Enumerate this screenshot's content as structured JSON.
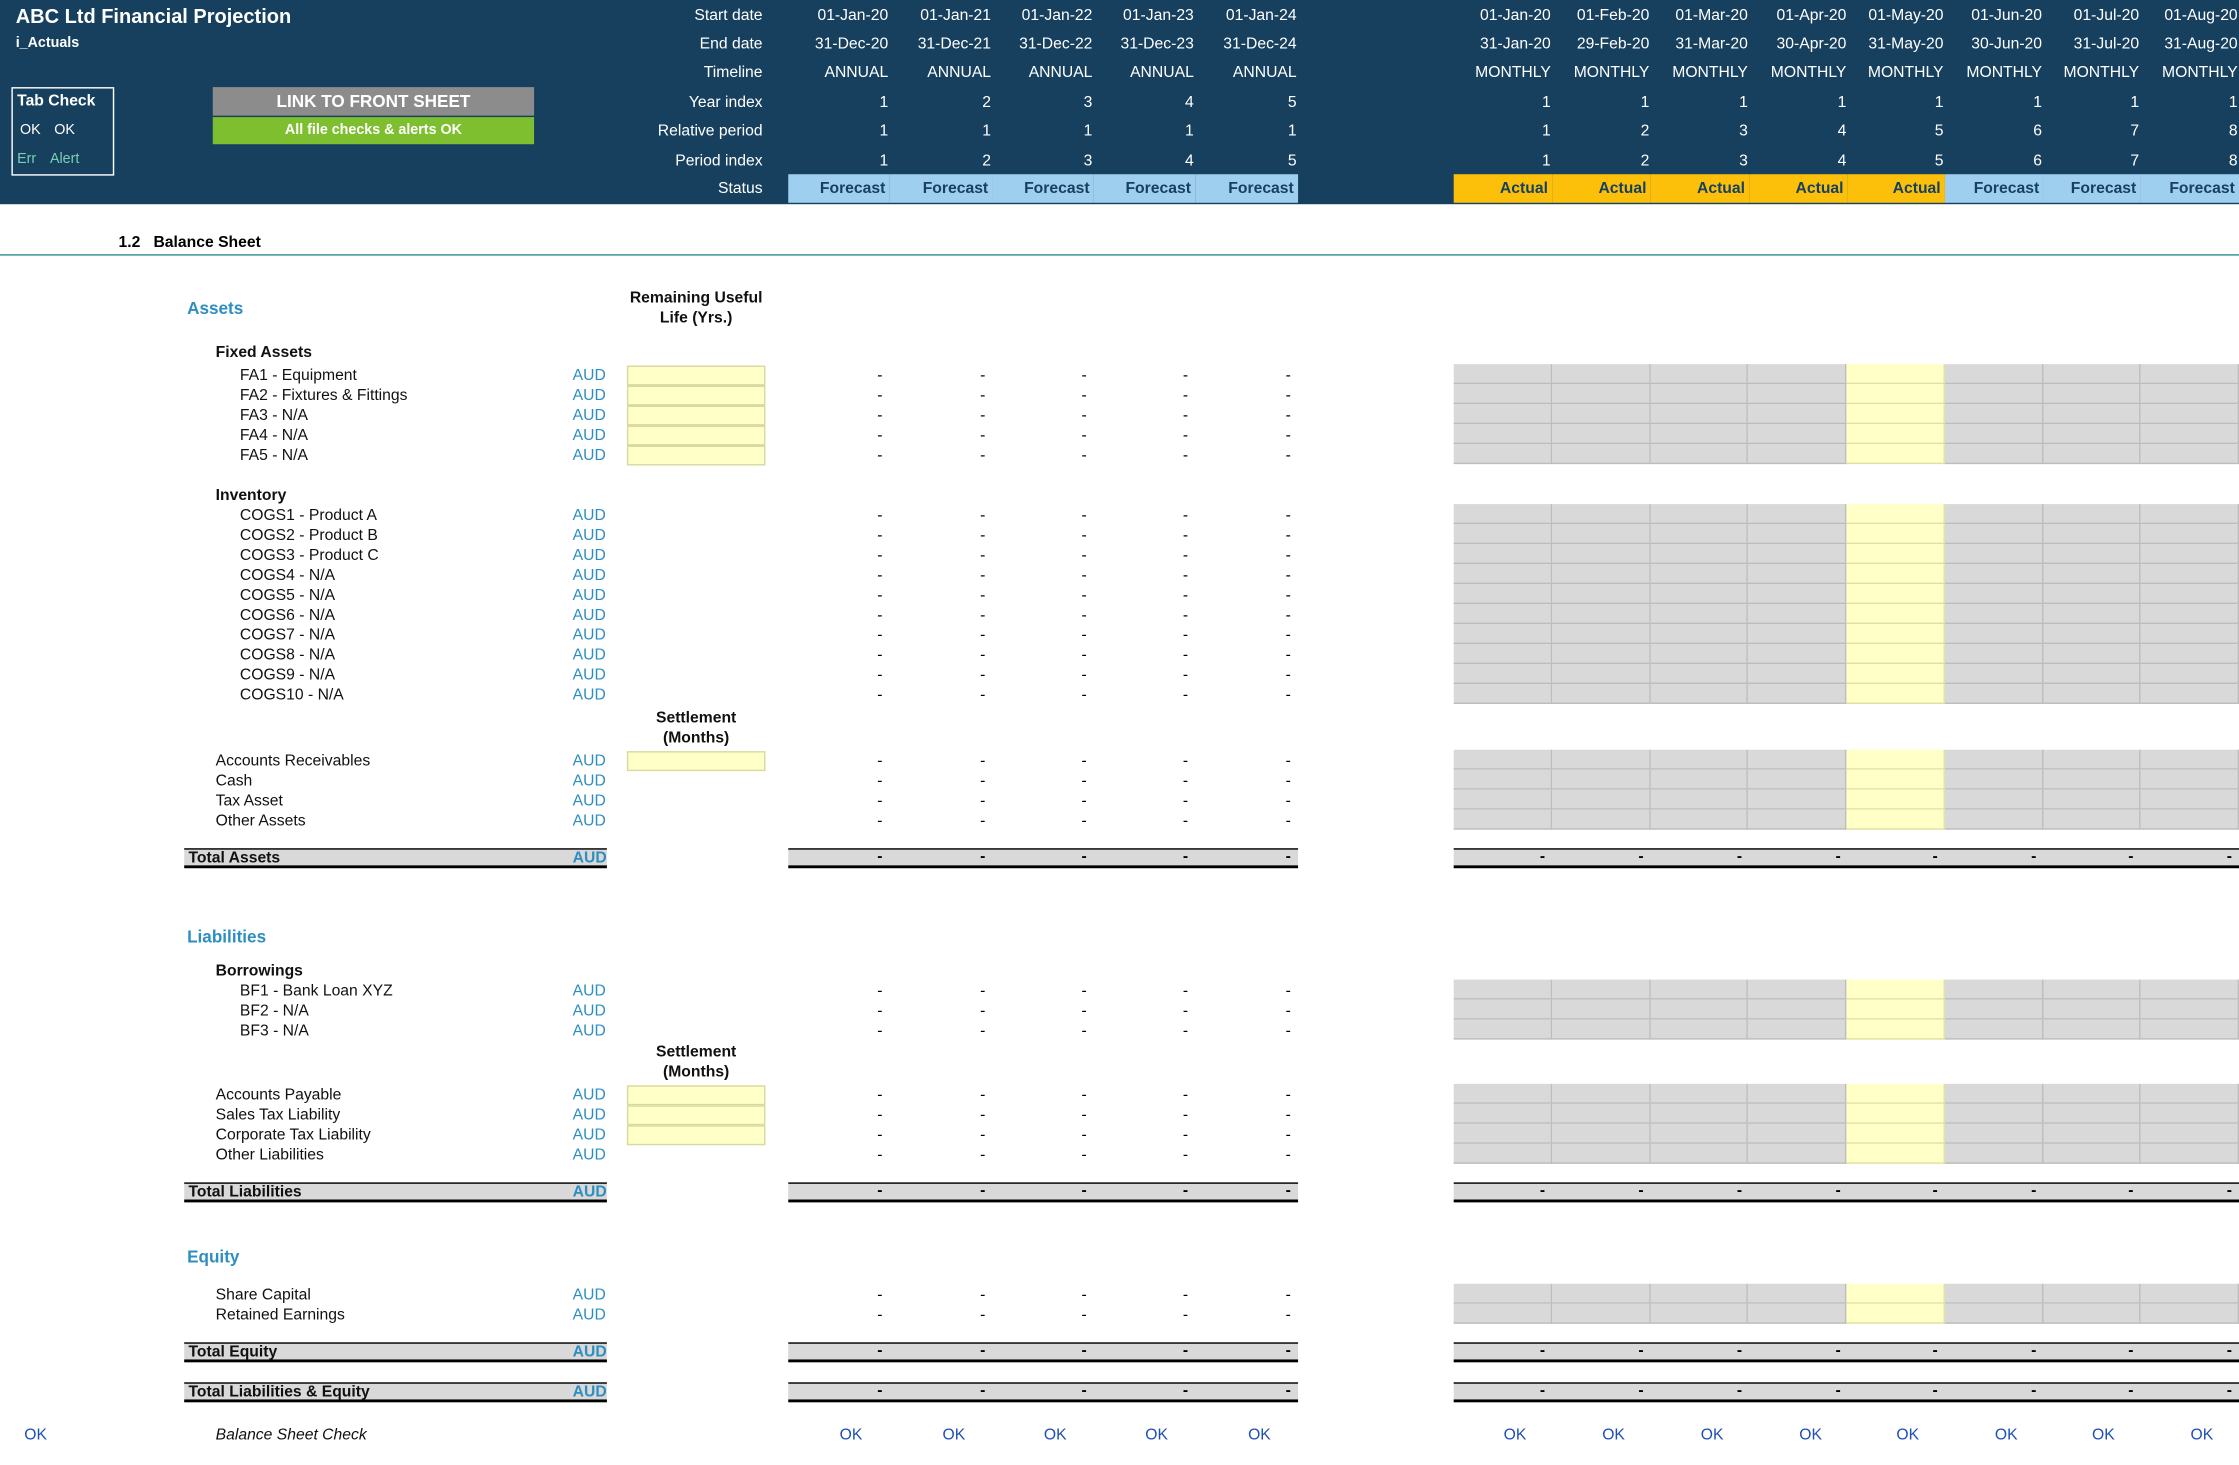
{
  "title": "ABC Ltd Financial Projection",
  "sheet_name": "i_Actuals",
  "tab_check": {
    "title": "Tab Check",
    "ok1": "OK",
    "ok2": "OK",
    "err": "Err",
    "alert": "Alert"
  },
  "link_button": "LINK TO FRONT SHEET",
  "checks_status": "All file checks & alerts OK",
  "row_labels": {
    "start": "Start date",
    "end": "End date",
    "timeline": "Timeline",
    "year_index": "Year index",
    "relative": "Relative period",
    "period": "Period index",
    "status": "Status"
  },
  "annual": {
    "start": [
      "01-Jan-20",
      "01-Jan-21",
      "01-Jan-22",
      "01-Jan-23",
      "01-Jan-24"
    ],
    "end": [
      "31-Dec-20",
      "31-Dec-21",
      "31-Dec-22",
      "31-Dec-23",
      "31-Dec-24"
    ],
    "timeline": [
      "ANNUAL",
      "ANNUAL",
      "ANNUAL",
      "ANNUAL",
      "ANNUAL"
    ],
    "year_index": [
      "1",
      "2",
      "3",
      "4",
      "5"
    ],
    "relative": [
      "1",
      "1",
      "1",
      "1",
      "1"
    ],
    "period": [
      "1",
      "2",
      "3",
      "4",
      "5"
    ],
    "status": [
      "Forecast",
      "Forecast",
      "Forecast",
      "Forecast",
      "Forecast"
    ]
  },
  "monthly": {
    "start": [
      "01-Jan-20",
      "01-Feb-20",
      "01-Mar-20",
      "01-Apr-20",
      "01-May-20",
      "01-Jun-20",
      "01-Jul-20",
      "01-Aug-20"
    ],
    "end": [
      "31-Jan-20",
      "29-Feb-20",
      "31-Mar-20",
      "30-Apr-20",
      "31-May-20",
      "30-Jun-20",
      "31-Jul-20",
      "31-Aug-20"
    ],
    "timeline": [
      "MONTHLY",
      "MONTHLY",
      "MONTHLY",
      "MONTHLY",
      "MONTHLY",
      "MONTHLY",
      "MONTHLY",
      "MONTHLY"
    ],
    "year_index": [
      "1",
      "1",
      "1",
      "1",
      "1",
      "1",
      "1",
      "1"
    ],
    "relative": [
      "1",
      "2",
      "3",
      "4",
      "5",
      "6",
      "7",
      "8"
    ],
    "period": [
      "1",
      "2",
      "3",
      "4",
      "5",
      "6",
      "7",
      "8"
    ],
    "status": [
      "Actual",
      "Actual",
      "Actual",
      "Actual",
      "Actual",
      "Forecast",
      "Forecast",
      "Forecast"
    ]
  },
  "section_title": "1.2   Balance Sheet",
  "unit": "AUD",
  "dash": "-",
  "ok": "OK",
  "assets": {
    "heading": "Assets",
    "useful_life_header": "Remaining Useful Life (Yrs.)",
    "settlement_header": "Settlement (Months)",
    "fixed_assets_heading": "Fixed Assets",
    "fixed_assets": [
      "FA1 - Equipment",
      "FA2 - Fixtures & Fittings",
      "FA3 - N/A",
      "FA4 - N/A",
      "FA5 - N/A"
    ],
    "inventory_heading": "Inventory",
    "inventory": [
      "COGS1 - Product A",
      "COGS2 - Product B",
      "COGS3 - Product C",
      "COGS4 - N/A",
      "COGS5 - N/A",
      "COGS6 - N/A",
      "COGS7 - N/A",
      "COGS8 - N/A",
      "COGS9 - N/A",
      "COGS10 - N/A"
    ],
    "other": [
      "Accounts Receivables",
      "Cash",
      "Tax Asset",
      "Other Assets"
    ],
    "total": "Total Assets"
  },
  "liabilities": {
    "heading": "Liabilities",
    "borrowings_heading": "Borrowings",
    "borrowings": [
      "BF1 - Bank Loan XYZ",
      "BF2 - N/A",
      "BF3 - N/A"
    ],
    "settlement_header": "Settlement (Months)",
    "other": [
      "Accounts Payable",
      "Sales Tax Liability",
      "Corporate Tax Liability",
      "Other Liabilities"
    ],
    "total": "Total Liabilities"
  },
  "equity": {
    "heading": "Equity",
    "items": [
      "Share Capital",
      "Retained Earnings"
    ],
    "total": "Total Equity"
  },
  "total_le": "Total Liabilities & Equity",
  "balance_check": "Balance Sheet Check",
  "left_ok": "OK",
  "colors": {
    "header_bg": "#17405f",
    "forecast": "#9fcfee",
    "actual": "#fcc00a",
    "input": "#ffffc8",
    "link_button": "#8c8c8c",
    "checks_ok": "#7dbf2e",
    "section_blue": "#2e8ec0"
  }
}
